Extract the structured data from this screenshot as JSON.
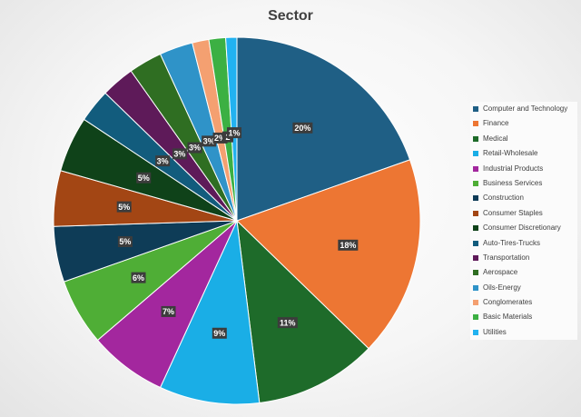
{
  "chart_data": {
    "type": "pie",
    "title": "Sector",
    "legend_position": "right",
    "slices": [
      {
        "label": "Computer and Technology",
        "value": 20,
        "display": "20%",
        "color": "#1f5f85"
      },
      {
        "label": "Finance",
        "value": 18,
        "display": "18%",
        "color": "#ed7633"
      },
      {
        "label": "Medical",
        "value": 11,
        "display": "11%",
        "color": "#1e6b2a"
      },
      {
        "label": "Retail-Wholesale",
        "value": 9,
        "display": "9%",
        "color": "#1aaee6"
      },
      {
        "label": "Industrial Products",
        "value": 7,
        "display": "7%",
        "color": "#a3279e"
      },
      {
        "label": "Business Services",
        "value": 6,
        "display": "6%",
        "color": "#4fae36"
      },
      {
        "label": "Construction",
        "value": 5,
        "display": "5%",
        "color": "#0e3c57"
      },
      {
        "label": "Consumer Staples",
        "value": 5,
        "display": "5%",
        "color": "#a34614"
      },
      {
        "label": "Consumer Discretionary",
        "value": 5,
        "display": "5%",
        "color": "#0f4219"
      },
      {
        "label": "Auto-Tires-Trucks",
        "value": 3,
        "display": "3%",
        "color": "#125c7d"
      },
      {
        "label": "Transportation",
        "value": 3,
        "display": "3%",
        "color": "#5e1a59"
      },
      {
        "label": "Aerospace",
        "value": 3,
        "display": "3%",
        "color": "#2f6e22"
      },
      {
        "label": "Oils-Energy",
        "value": 3,
        "display": "3%",
        "color": "#2f93c8"
      },
      {
        "label": "Conglomerates",
        "value": 1.5,
        "display": "2%",
        "color": "#f4a071"
      },
      {
        "label": "Basic Materials",
        "value": 1.5,
        "display": "2",
        "color": "#3cb043"
      },
      {
        "label": "Utilities",
        "value": 1,
        "display": "1%",
        "color": "#22b2f0"
      }
    ]
  }
}
